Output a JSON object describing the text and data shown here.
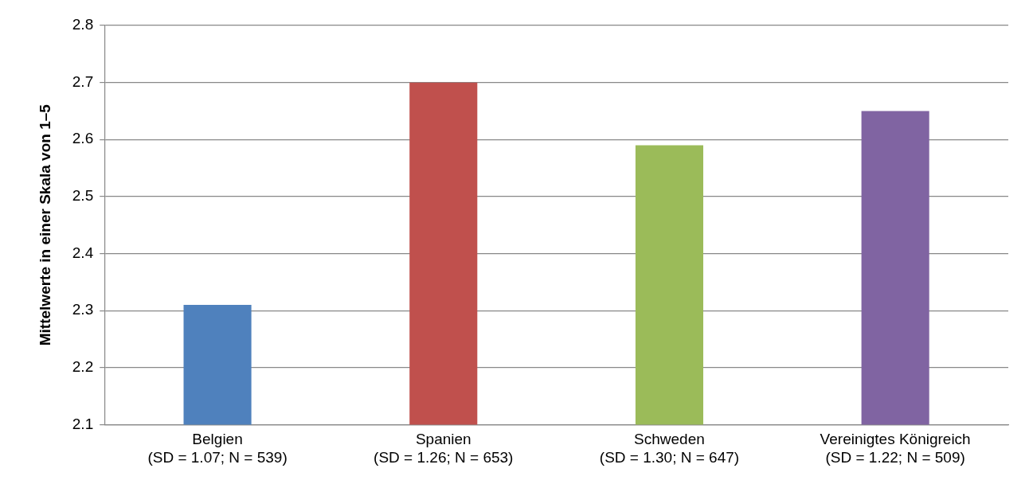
{
  "chart_data": {
    "type": "bar",
    "ylabel": "Mittelwerte in einer Skala von 1–5",
    "categories": [
      "Belgien\n(SD = 1.07; N = 539)",
      "Spanien\n(SD = 1.26; N = 653)",
      "Schweden\n(SD = 1.30; N = 647)",
      "Vereinigtes Königreich\n(SD = 1.22; N = 509)"
    ],
    "values": [
      2.31,
      2.7,
      2.59,
      2.65
    ],
    "colors": [
      "#4f81bd",
      "#c0504d",
      "#9bbb59",
      "#8064a2"
    ],
    "ylim": [
      2.1,
      2.8
    ],
    "yticks": [
      2.1,
      2.2,
      2.3,
      2.4,
      2.5,
      2.6,
      2.7,
      2.8
    ],
    "grid": "y",
    "legend": false
  }
}
